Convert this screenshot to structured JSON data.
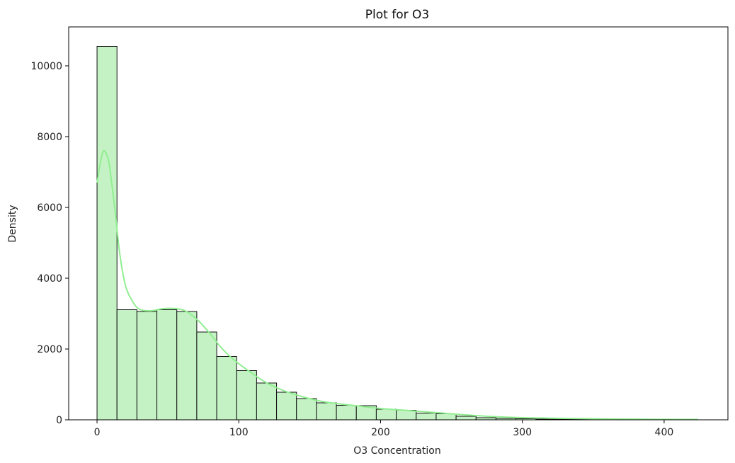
{
  "chart_data": {
    "type": "bar",
    "title": "Plot for O3",
    "xlabel": "O3 Concentration",
    "ylabel": "Density",
    "xlim": [
      -20,
      445
    ],
    "ylim": [
      0,
      11100
    ],
    "xticks": [
      0,
      100,
      200,
      300,
      400
    ],
    "yticks": [
      0,
      2000,
      4000,
      6000,
      8000,
      10000
    ],
    "grid": false,
    "bin_width": 14.07,
    "bin_start": 0,
    "values": [
      10550,
      3110,
      3060,
      3110,
      3060,
      2480,
      1790,
      1390,
      1040,
      780,
      600,
      480,
      410,
      400,
      300,
      270,
      190,
      170,
      100,
      60,
      40,
      30,
      20,
      18,
      16,
      14,
      12,
      10,
      8,
      8
    ],
    "kde": {
      "x": [
        0,
        3,
        5,
        8,
        10,
        13,
        16,
        20,
        25,
        30,
        38,
        45,
        52,
        60,
        65,
        72,
        80,
        88,
        97,
        107,
        118,
        130,
        145,
        160,
        180,
        200,
        220,
        240,
        260,
        280,
        300,
        330,
        360,
        390,
        424
      ],
      "y": [
        6700,
        7400,
        7600,
        7350,
        6800,
        5800,
        4700,
        3800,
        3350,
        3120,
        3080,
        3130,
        3150,
        3110,
        3010,
        2780,
        2420,
        2020,
        1680,
        1380,
        1080,
        850,
        650,
        510,
        410,
        320,
        260,
        200,
        140,
        90,
        60,
        40,
        25,
        15,
        10
      ]
    },
    "colors": {
      "bar_fill": "#c4f2c4",
      "bar_edge": "#111111",
      "kde_line": "#90ee90"
    }
  }
}
